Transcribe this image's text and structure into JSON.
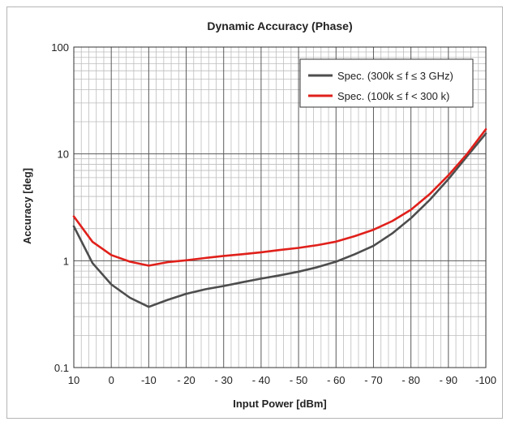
{
  "chart_data": {
    "type": "line",
    "title": "Dynamic Accuracy (Phase)",
    "xlabel": "Input Power [dBm]",
    "ylabel": "Accuracy [deg]",
    "x_ticks": [
      10,
      0,
      -10,
      -20,
      -30,
      -40,
      -50,
      -60,
      -70,
      -80,
      -90,
      -100
    ],
    "x_tick_labels": [
      "10",
      "0",
      "-10",
      "- 20",
      "- 30",
      "- 40",
      "- 50",
      "- 60",
      "- 70",
      "- 80",
      "- 90",
      "-100"
    ],
    "y_ticks": [
      0.1,
      1,
      10,
      100
    ],
    "y_tick_labels": [
      "0.1",
      "1",
      "10",
      "100"
    ],
    "xlim": [
      10,
      -100
    ],
    "ylim": [
      0.1,
      100
    ],
    "y_scale": "log",
    "grid": true,
    "legend_position": "top-right",
    "series": [
      {
        "name": "Spec. (300k ≤ f ≤ 3 GHz)",
        "color": "#4d4d4d",
        "x": [
          10,
          5,
          0,
          -5,
          -10,
          -15,
          -20,
          -25,
          -30,
          -35,
          -40,
          -45,
          -50,
          -55,
          -60,
          -65,
          -70,
          -75,
          -80,
          -85,
          -90,
          -95,
          -100
        ],
        "y": [
          2.1,
          0.95,
          0.6,
          0.45,
          0.37,
          0.43,
          0.49,
          0.54,
          0.58,
          0.63,
          0.68,
          0.73,
          0.79,
          0.87,
          0.98,
          1.15,
          1.38,
          1.8,
          2.5,
          3.7,
          5.8,
          9.5,
          15.5
        ]
      },
      {
        "name": "Spec. (100k ≤ f < 300 k)",
        "color": "#e0201b",
        "x": [
          10,
          5,
          0,
          -5,
          -10,
          -15,
          -20,
          -25,
          -30,
          -35,
          -40,
          -45,
          -50,
          -55,
          -60,
          -65,
          -70,
          -75,
          -80,
          -85,
          -90,
          -95,
          -100
        ],
        "y": [
          2.6,
          1.5,
          1.13,
          0.98,
          0.9,
          0.97,
          1.01,
          1.06,
          1.11,
          1.15,
          1.2,
          1.26,
          1.32,
          1.4,
          1.51,
          1.7,
          1.95,
          2.35,
          3.0,
          4.2,
          6.3,
          10.0,
          17.0
        ]
      }
    ]
  }
}
